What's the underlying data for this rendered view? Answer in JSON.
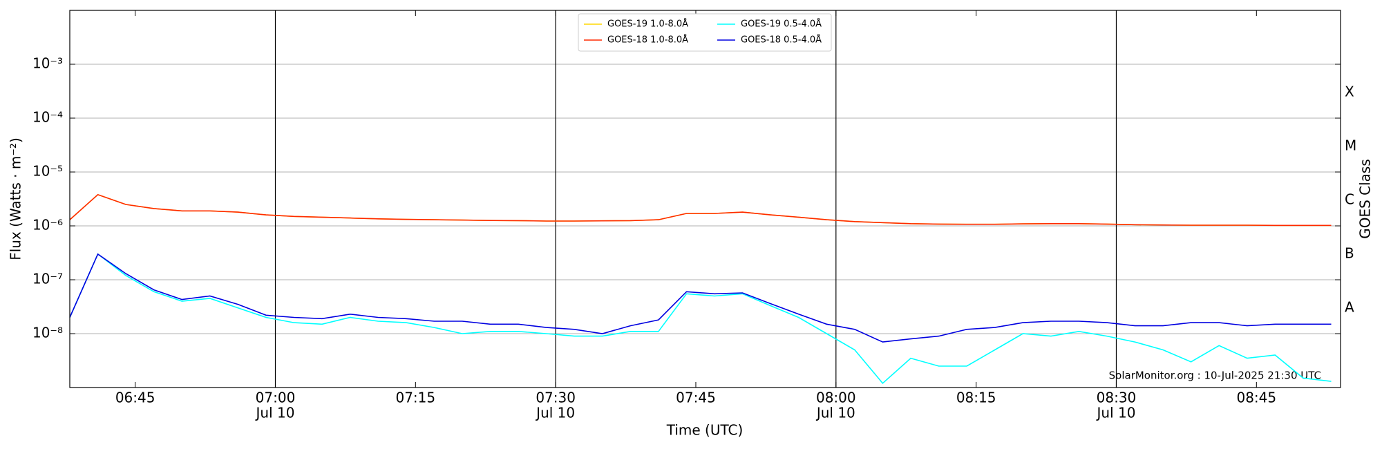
{
  "chart_data": {
    "type": "line",
    "log_y": true,
    "grid": true,
    "xlabel": "Time (UTC)",
    "ylabel": "Flux (Watts · m⁻²)",
    "y2label": "GOES Class",
    "annotation": "SolarMonitor.org : 10-Jul-2025 21:30 UTC",
    "legend": "top-center",
    "xlim": [
      "06:38",
      "08:54"
    ],
    "xticks": [
      "06:45",
      {
        "value": "07:00",
        "label": [
          "07:00",
          "Jul 10"
        ]
      },
      "07:15",
      {
        "value": "07:30",
        "label": [
          "07:30",
          "Jul 10"
        ]
      },
      "07:45",
      {
        "value": "08:00",
        "label": [
          "08:00",
          "Jul 10"
        ]
      },
      "08:15",
      {
        "value": "08:30",
        "label": [
          "08:30",
          "Jul 10"
        ]
      },
      "08:45"
    ],
    "ylim": [
      1e-09,
      0.01
    ],
    "yticks": [
      {
        "value": 1e-08,
        "label": "10⁻⁸"
      },
      {
        "value": 1e-07,
        "label": "10⁻⁷"
      },
      {
        "value": 1e-06,
        "label": "10⁻⁶"
      },
      {
        "value": 1e-05,
        "label": "10⁻⁵"
      },
      {
        "value": 0.0001,
        "label": "10⁻⁴"
      },
      {
        "value": 0.001,
        "label": "10⁻³"
      }
    ],
    "y2lim": [
      1e-09,
      0.01
    ],
    "y2ticks": [
      {
        "value": 3e-08,
        "label": "A"
      },
      {
        "value": 3e-07,
        "label": "B"
      },
      {
        "value": 3e-06,
        "label": "C"
      },
      {
        "value": 3e-05,
        "label": "M"
      },
      {
        "value": 0.0003,
        "label": "X"
      }
    ],
    "x": [
      "06:38",
      "06:41",
      "06:44",
      "06:47",
      "06:50",
      "06:53",
      "06:56",
      "06:59",
      "07:02",
      "07:05",
      "07:08",
      "07:11",
      "07:14",
      "07:17",
      "07:20",
      "07:23",
      "07:26",
      "07:29",
      "07:32",
      "07:35",
      "07:38",
      "07:41",
      "07:44",
      "07:47",
      "07:50",
      "07:53",
      "07:56",
      "07:59",
      "08:02",
      "08:05",
      "08:08",
      "08:11",
      "08:14",
      "08:17",
      "08:20",
      "08:23",
      "08:26",
      "08:29",
      "08:32",
      "08:35",
      "08:38",
      "08:41",
      "08:44",
      "08:47",
      "08:50",
      "08:53"
    ],
    "series": [
      {
        "name": "GOES-19 1.0-8.0Å",
        "color": "#ffd700",
        "values": [
          1.3e-06,
          3.8e-06,
          2.5e-06,
          2.1e-06,
          1.9e-06,
          1.9e-06,
          1.8e-06,
          1.6e-06,
          1.5e-06,
          1.45e-06,
          1.4e-06,
          1.35e-06,
          1.32e-06,
          1.3e-06,
          1.28e-06,
          1.26e-06,
          1.25e-06,
          1.23e-06,
          1.23e-06,
          1.24e-06,
          1.25e-06,
          1.3e-06,
          1.7e-06,
          1.7e-06,
          1.8e-06,
          1.6e-06,
          1.45e-06,
          1.3e-06,
          1.2e-06,
          1.15e-06,
          1.1e-06,
          1.08e-06,
          1.07e-06,
          1.07e-06,
          1.09e-06,
          1.1e-06,
          1.1e-06,
          1.08e-06,
          1.05e-06,
          1.04e-06,
          1.03e-06,
          1.03e-06,
          1.03e-06,
          1.02e-06,
          1.02e-06,
          1.02e-06
        ]
      },
      {
        "name": "GOES-18 1.0-8.0Å",
        "color": "#ff2a00",
        "values": [
          1.3e-06,
          3.8e-06,
          2.5e-06,
          2.1e-06,
          1.9e-06,
          1.9e-06,
          1.8e-06,
          1.6e-06,
          1.5e-06,
          1.45e-06,
          1.4e-06,
          1.35e-06,
          1.32e-06,
          1.3e-06,
          1.28e-06,
          1.26e-06,
          1.25e-06,
          1.23e-06,
          1.23e-06,
          1.24e-06,
          1.25e-06,
          1.3e-06,
          1.7e-06,
          1.7e-06,
          1.8e-06,
          1.6e-06,
          1.45e-06,
          1.3e-06,
          1.2e-06,
          1.15e-06,
          1.1e-06,
          1.08e-06,
          1.07e-06,
          1.07e-06,
          1.09e-06,
          1.1e-06,
          1.1e-06,
          1.08e-06,
          1.05e-06,
          1.04e-06,
          1.03e-06,
          1.03e-06,
          1.03e-06,
          1.02e-06,
          1.02e-06,
          1.02e-06
        ]
      },
      {
        "name": "GOES-19 0.5-4.0Å",
        "color": "#00ffff",
        "values": [
          2e-08,
          3e-07,
          1.2e-07,
          6e-08,
          4e-08,
          4.5e-08,
          3e-08,
          2e-08,
          1.6e-08,
          1.5e-08,
          2e-08,
          1.7e-08,
          1.6e-08,
          1.3e-08,
          1e-08,
          1.1e-08,
          1.1e-08,
          1e-08,
          9e-09,
          9e-09,
          1.1e-08,
          1.1e-08,
          5.5e-08,
          5e-08,
          5.5e-08,
          3.3e-08,
          2e-08,
          1e-08,
          5e-09,
          1.2e-09,
          3.5e-09,
          2.5e-09,
          2.5e-09,
          5e-09,
          1e-08,
          9e-09,
          1.1e-08,
          9e-09,
          7e-09,
          5e-09,
          3e-09,
          6e-09,
          3.5e-09,
          4e-09,
          1.5e-09,
          1.3e-09
        ]
      },
      {
        "name": "GOES-18 0.5-4.0Å",
        "color": "#0000e0",
        "values": [
          2e-08,
          3e-07,
          1.3e-07,
          6.5e-08,
          4.3e-08,
          5e-08,
          3.5e-08,
          2.2e-08,
          2e-08,
          1.9e-08,
          2.3e-08,
          2e-08,
          1.9e-08,
          1.7e-08,
          1.7e-08,
          1.5e-08,
          1.5e-08,
          1.3e-08,
          1.2e-08,
          1e-08,
          1.4e-08,
          1.8e-08,
          6e-08,
          5.5e-08,
          5.7e-08,
          3.6e-08,
          2.3e-08,
          1.5e-08,
          1.2e-08,
          7e-09,
          8e-09,
          9e-09,
          1.2e-08,
          1.3e-08,
          1.6e-08,
          1.7e-08,
          1.7e-08,
          1.6e-08,
          1.4e-08,
          1.4e-08,
          1.6e-08,
          1.6e-08,
          1.4e-08,
          1.5e-08,
          1.5e-08,
          1.5e-08
        ]
      }
    ]
  }
}
